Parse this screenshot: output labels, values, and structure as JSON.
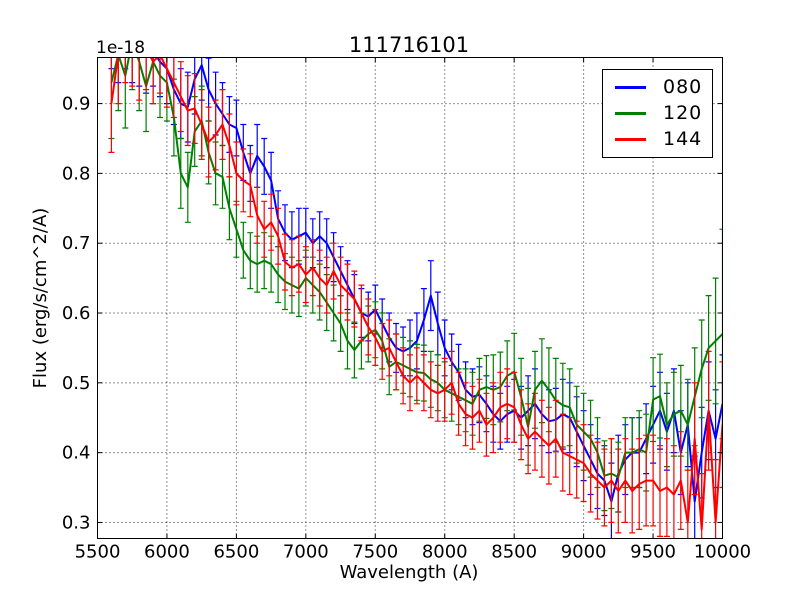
{
  "title": "111716101",
  "axes": {
    "xlabel": "Wavelength (A)",
    "ylabel": "Flux (erg/s/cm^2/A)",
    "offset_text": "1e-18",
    "xlim": [
      5500,
      10000
    ],
    "ylim": [
      0.277,
      0.966
    ],
    "xticks": [
      5500,
      6000,
      6500,
      7000,
      7500,
      8000,
      8500,
      9000,
      9500,
      10000
    ],
    "yticks": [
      0.3,
      0.4,
      0.5,
      0.6,
      0.7,
      0.8,
      0.9
    ],
    "grid": true
  },
  "legend": {
    "position": "upper right",
    "entries": [
      {
        "label": "080",
        "color": "#0000ff"
      },
      {
        "label": "120",
        "color": "#008000"
      },
      {
        "label": "144",
        "color": "#ff0000"
      }
    ]
  },
  "chart_data": {
    "type": "line",
    "title": "111716101",
    "xlabel": "Wavelength (A)",
    "ylabel": "Flux (erg/s/cm^2/A)",
    "y_scale_factor": "1e-18",
    "xlim": [
      5500,
      10000
    ],
    "ylim": [
      0.277,
      0.966
    ],
    "grid": "on",
    "legend_position": "upper right",
    "x": [
      5600,
      5650,
      5700,
      5750,
      5800,
      5850,
      5900,
      5950,
      6000,
      6050,
      6100,
      6150,
      6200,
      6250,
      6300,
      6350,
      6400,
      6450,
      6500,
      6550,
      6600,
      6650,
      6700,
      6750,
      6800,
      6850,
      6900,
      6950,
      7000,
      7050,
      7100,
      7150,
      7200,
      7250,
      7300,
      7350,
      7400,
      7450,
      7500,
      7550,
      7600,
      7650,
      7700,
      7750,
      7800,
      7850,
      7900,
      7950,
      8000,
      8050,
      8100,
      8150,
      8200,
      8250,
      8300,
      8350,
      8400,
      8450,
      8500,
      8550,
      8600,
      8650,
      8700,
      8750,
      8800,
      8850,
      8900,
      8950,
      9000,
      9050,
      9100,
      9150,
      9200,
      9250,
      9300,
      9350,
      9400,
      9450,
      9500,
      9550,
      9600,
      9650,
      9700,
      9750,
      9800,
      9850,
      9900,
      9950,
      10000
    ],
    "series": [
      {
        "name": "080",
        "color": "#0000ff",
        "values": [
          1.02,
          1.0,
          1.01,
          0.99,
          0.985,
          0.97,
          0.975,
          0.96,
          0.95,
          0.92,
          0.9,
          0.895,
          0.935,
          0.955,
          0.92,
          0.9,
          0.885,
          0.87,
          0.865,
          0.83,
          0.8,
          0.825,
          0.81,
          0.79,
          0.735,
          0.715,
          0.705,
          0.71,
          0.715,
          0.7,
          0.71,
          0.7,
          0.68,
          0.66,
          0.64,
          0.62,
          0.6,
          0.595,
          0.605,
          0.585,
          0.565,
          0.55,
          0.545,
          0.55,
          0.56,
          0.59,
          0.625,
          0.585,
          0.55,
          0.53,
          0.515,
          0.49,
          0.48,
          0.483,
          0.47,
          0.455,
          0.445,
          0.455,
          0.46,
          0.45,
          0.46,
          0.47,
          0.455,
          0.445,
          0.447,
          0.455,
          0.45,
          0.43,
          0.41,
          0.39,
          0.37,
          0.36,
          0.33,
          0.37,
          0.39,
          0.4,
          0.4,
          0.42,
          0.44,
          0.46,
          0.43,
          0.46,
          0.4,
          0.44,
          0.33,
          0.4,
          0.46,
          0.42,
          0.47
        ],
        "errors": [
          0.07,
          0.07,
          0.06,
          0.06,
          0.06,
          0.055,
          0.05,
          0.05,
          0.05,
          0.05,
          0.05,
          0.05,
          0.05,
          0.05,
          0.045,
          0.045,
          0.045,
          0.04,
          0.04,
          0.04,
          0.04,
          0.045,
          0.04,
          0.04,
          0.04,
          0.04,
          0.04,
          0.04,
          0.035,
          0.035,
          0.035,
          0.035,
          0.035,
          0.035,
          0.035,
          0.035,
          0.035,
          0.035,
          0.035,
          0.035,
          0.035,
          0.035,
          0.035,
          0.04,
          0.04,
          0.045,
          0.05,
          0.045,
          0.04,
          0.04,
          0.04,
          0.04,
          0.04,
          0.04,
          0.04,
          0.04,
          0.04,
          0.04,
          0.045,
          0.045,
          0.05,
          0.05,
          0.045,
          0.045,
          0.045,
          0.05,
          0.05,
          0.05,
          0.05,
          0.05,
          0.05,
          0.05,
          0.055,
          0.055,
          0.05,
          0.05,
          0.05,
          0.05,
          0.055,
          0.055,
          0.055,
          0.06,
          0.06,
          0.06,
          0.065,
          0.065,
          0.07,
          0.07,
          0.07
        ]
      },
      {
        "name": "120",
        "color": "#008000",
        "values": [
          0.93,
          0.97,
          0.94,
          0.99,
          0.96,
          0.925,
          0.96,
          0.94,
          0.93,
          0.88,
          0.8,
          0.78,
          0.86,
          0.875,
          0.83,
          0.8,
          0.795,
          0.75,
          0.72,
          0.69,
          0.675,
          0.67,
          0.675,
          0.67,
          0.655,
          0.645,
          0.64,
          0.635,
          0.65,
          0.64,
          0.63,
          0.615,
          0.6,
          0.585,
          0.56,
          0.547,
          0.56,
          0.57,
          0.576,
          0.56,
          0.523,
          0.53,
          0.525,
          0.52,
          0.515,
          0.514,
          0.505,
          0.5,
          0.49,
          0.485,
          0.48,
          0.475,
          0.47,
          0.49,
          0.494,
          0.49,
          0.494,
          0.51,
          0.516,
          0.48,
          0.437,
          0.49,
          0.503,
          0.49,
          0.475,
          0.468,
          0.465,
          0.44,
          0.43,
          0.42,
          0.4,
          0.367,
          0.37,
          0.365,
          0.4,
          0.4,
          0.405,
          0.4,
          0.476,
          0.481,
          0.44,
          0.455,
          0.46,
          0.44,
          0.48,
          0.52,
          0.55,
          0.56,
          0.57
        ],
        "errors": [
          0.08,
          0.08,
          0.075,
          0.07,
          0.07,
          0.065,
          0.06,
          0.06,
          0.055,
          0.055,
          0.05,
          0.05,
          0.05,
          0.05,
          0.045,
          0.045,
          0.045,
          0.045,
          0.04,
          0.04,
          0.04,
          0.04,
          0.04,
          0.04,
          0.04,
          0.04,
          0.04,
          0.04,
          0.04,
          0.04,
          0.04,
          0.04,
          0.04,
          0.04,
          0.04,
          0.04,
          0.04,
          0.04,
          0.04,
          0.04,
          0.04,
          0.04,
          0.04,
          0.04,
          0.04,
          0.04,
          0.04,
          0.04,
          0.04,
          0.04,
          0.04,
          0.045,
          0.045,
          0.045,
          0.045,
          0.05,
          0.05,
          0.05,
          0.055,
          0.055,
          0.055,
          0.055,
          0.06,
          0.06,
          0.06,
          0.06,
          0.055,
          0.055,
          0.055,
          0.055,
          0.05,
          0.05,
          0.05,
          0.05,
          0.05,
          0.05,
          0.055,
          0.055,
          0.06,
          0.06,
          0.06,
          0.06,
          0.065,
          0.065,
          0.07,
          0.07,
          0.075,
          0.09,
          0.15
        ]
      },
      {
        "name": "144",
        "color": "#ff0000",
        "values": [
          0.9,
          0.97,
          1.0,
          0.99,
          0.97,
          0.98,
          0.96,
          0.97,
          0.95,
          0.93,
          0.91,
          0.89,
          0.893,
          0.87,
          0.845,
          0.855,
          0.87,
          0.84,
          0.8,
          0.79,
          0.783,
          0.74,
          0.72,
          0.73,
          0.71,
          0.673,
          0.665,
          0.67,
          0.655,
          0.665,
          0.65,
          0.64,
          0.66,
          0.64,
          0.63,
          0.62,
          0.6,
          0.58,
          0.565,
          0.545,
          0.55,
          0.53,
          0.51,
          0.5,
          0.51,
          0.5,
          0.49,
          0.485,
          0.49,
          0.5,
          0.47,
          0.455,
          0.45,
          0.46,
          0.44,
          0.45,
          0.465,
          0.47,
          0.465,
          0.44,
          0.42,
          0.43,
          0.42,
          0.41,
          0.42,
          0.4,
          0.395,
          0.39,
          0.385,
          0.37,
          0.36,
          0.35,
          0.36,
          0.345,
          0.36,
          0.345,
          0.355,
          0.36,
          0.36,
          0.345,
          0.35,
          0.34,
          0.36,
          0.3,
          0.42,
          0.29,
          0.46,
          0.3,
          0.44
        ],
        "errors": [
          0.07,
          0.07,
          0.07,
          0.065,
          0.065,
          0.06,
          0.06,
          0.055,
          0.055,
          0.05,
          0.05,
          0.05,
          0.05,
          0.05,
          0.05,
          0.05,
          0.05,
          0.045,
          0.045,
          0.045,
          0.045,
          0.04,
          0.04,
          0.04,
          0.04,
          0.04,
          0.04,
          0.04,
          0.04,
          0.04,
          0.04,
          0.04,
          0.04,
          0.04,
          0.04,
          0.04,
          0.04,
          0.04,
          0.04,
          0.04,
          0.04,
          0.04,
          0.04,
          0.04,
          0.04,
          0.04,
          0.04,
          0.04,
          0.045,
          0.045,
          0.045,
          0.045,
          0.045,
          0.045,
          0.045,
          0.05,
          0.05,
          0.05,
          0.05,
          0.05,
          0.05,
          0.055,
          0.055,
          0.055,
          0.055,
          0.055,
          0.055,
          0.055,
          0.055,
          0.055,
          0.055,
          0.055,
          0.06,
          0.06,
          0.06,
          0.06,
          0.065,
          0.065,
          0.065,
          0.065,
          0.07,
          0.07,
          0.07,
          0.075,
          0.08,
          0.08,
          0.085,
          0.09,
          0.09
        ]
      }
    ]
  }
}
